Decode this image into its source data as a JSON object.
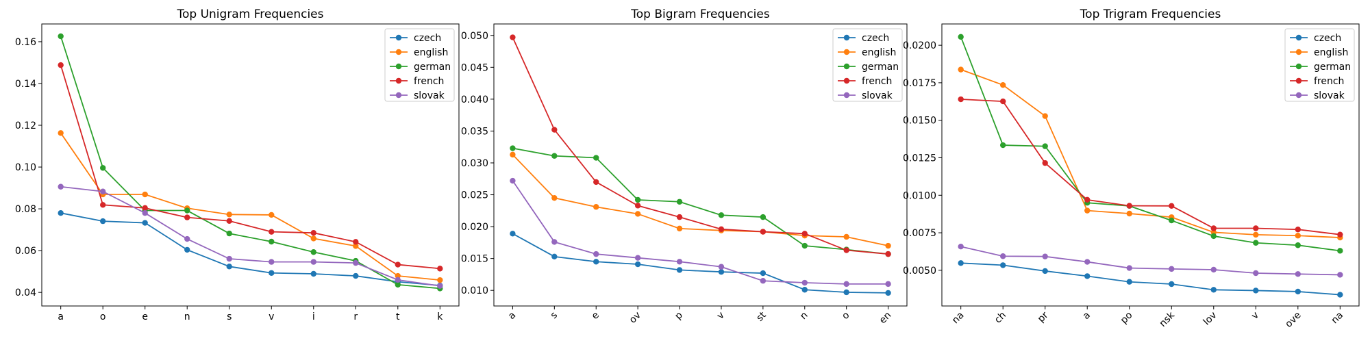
{
  "figure": {
    "colors": {
      "czech": "#1f77b4",
      "english": "#ff7f0e",
      "german": "#2ca02c",
      "french": "#d62728",
      "slovak": "#9467bd"
    }
  },
  "chart_data": [
    {
      "type": "line",
      "title": "Top Unigram Frequencies",
      "xlabel": "",
      "ylabel": "",
      "categories": [
        "a",
        "o",
        "e",
        "n",
        "s",
        "v",
        "i",
        "r",
        "t",
        "k"
      ],
      "ylim": [
        0.0335,
        0.1685
      ],
      "yticks": [
        0.04,
        0.06,
        0.08,
        0.1,
        0.12,
        0.14,
        0.16
      ],
      "ytick_labels": [
        "0.04",
        "0.06",
        "0.08",
        "0.10",
        "0.12",
        "0.14",
        "0.16"
      ],
      "xtick_rotation": 0,
      "grid": false,
      "legend": "top-right",
      "series": [
        {
          "name": "czech",
          "values": [
            0.078,
            0.0741,
            0.0733,
            0.0604,
            0.0524,
            0.0493,
            0.0489,
            0.0479,
            0.0451,
            0.0433
          ]
        },
        {
          "name": "english",
          "values": [
            0.1163,
            0.0869,
            0.0869,
            0.0803,
            0.0773,
            0.0771,
            0.0658,
            0.0622,
            0.0479,
            0.0459
          ]
        },
        {
          "name": "german",
          "values": [
            0.1626,
            0.0996,
            0.0792,
            0.0792,
            0.0682,
            0.0643,
            0.0593,
            0.0551,
            0.0437,
            0.0419
          ]
        },
        {
          "name": "french",
          "values": [
            0.1488,
            0.0819,
            0.0804,
            0.0759,
            0.0742,
            0.069,
            0.0685,
            0.0642,
            0.0533,
            0.0514
          ]
        },
        {
          "name": "slovak",
          "values": [
            0.0906,
            0.0883,
            0.078,
            0.0656,
            0.0561,
            0.0546,
            0.0546,
            0.0541,
            0.046,
            0.0431
          ]
        }
      ]
    },
    {
      "type": "line",
      "title": "Top Bigram Frequencies",
      "xlabel": "",
      "ylabel": "",
      "categories": [
        "a",
        "s",
        "e",
        "ov",
        "p",
        "v",
        "st",
        "n",
        "o",
        "en"
      ],
      "ylim": [
        0.00755,
        0.0518
      ],
      "yticks": [
        0.01,
        0.015,
        0.02,
        0.025,
        0.03,
        0.035,
        0.04,
        0.045,
        0.05
      ],
      "ytick_labels": [
        "0.010",
        "0.015",
        "0.020",
        "0.025",
        "0.030",
        "0.035",
        "0.040",
        "0.045",
        "0.050"
      ],
      "xtick_rotation": -45,
      "grid": false,
      "legend": "top-right",
      "series": [
        {
          "name": "czech",
          "values": [
            0.0189,
            0.0153,
            0.0145,
            0.0141,
            0.0132,
            0.0129,
            0.0127,
            0.0101,
            0.0097,
            0.0096
          ]
        },
        {
          "name": "english",
          "values": [
            0.0313,
            0.0245,
            0.0231,
            0.022,
            0.0197,
            0.0194,
            0.0192,
            0.0186,
            0.0184,
            0.017
          ]
        },
        {
          "name": "german",
          "values": [
            0.0323,
            0.0311,
            0.0308,
            0.0242,
            0.0239,
            0.0218,
            0.0215,
            0.017,
            0.0164,
            0.0157
          ]
        },
        {
          "name": "french",
          "values": [
            0.0497,
            0.0352,
            0.027,
            0.0233,
            0.0215,
            0.0196,
            0.0192,
            0.0189,
            0.0163,
            0.0157
          ]
        },
        {
          "name": "slovak",
          "values": [
            0.0272,
            0.0176,
            0.0157,
            0.0151,
            0.0145,
            0.0137,
            0.0115,
            0.0112,
            0.011,
            0.011
          ]
        }
      ]
    },
    {
      "type": "line",
      "title": "Top Trigram Frequencies",
      "xlabel": "",
      "ylabel": "",
      "categories": [
        "na",
        "ch",
        "pr",
        "a",
        "po",
        "nsk",
        "lov",
        "v",
        "ove",
        "na"
      ],
      "ylim": [
        0.00262,
        0.02142
      ],
      "yticks": [
        0.005,
        0.0075,
        0.01,
        0.0125,
        0.015,
        0.0175,
        0.02
      ],
      "ytick_labels": [
        "0.0050",
        "0.0075",
        "0.0100",
        "0.0125",
        "0.0150",
        "0.0175",
        "0.0200"
      ],
      "xtick_rotation": -45,
      "grid": false,
      "legend": "top-right",
      "series": [
        {
          "name": "czech",
          "values": [
            0.00548,
            0.00534,
            0.00495,
            0.00461,
            0.00423,
            0.00408,
            0.0037,
            0.00365,
            0.00358,
            0.00337
          ]
        },
        {
          "name": "english",
          "values": [
            0.01838,
            0.01735,
            0.01528,
            0.00898,
            0.00878,
            0.00854,
            0.00753,
            0.00737,
            0.00731,
            0.00718
          ]
        },
        {
          "name": "german",
          "values": [
            0.02056,
            0.01334,
            0.01327,
            0.0095,
            0.00929,
            0.00832,
            0.00728,
            0.00683,
            0.00667,
            0.0063
          ]
        },
        {
          "name": "french",
          "values": [
            0.0164,
            0.01626,
            0.01215,
            0.0097,
            0.0093,
            0.00929,
            0.0078,
            0.0078,
            0.00772,
            0.00738
          ]
        },
        {
          "name": "slovak",
          "values": [
            0.00658,
            0.00594,
            0.00592,
            0.00556,
            0.00515,
            0.00509,
            0.00504,
            0.00481,
            0.00475,
            0.0047
          ]
        }
      ]
    }
  ]
}
